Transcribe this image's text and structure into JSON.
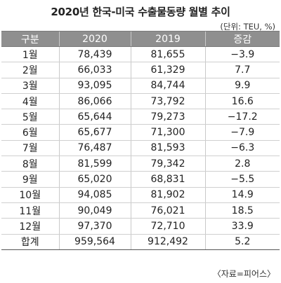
{
  "title": "2020년 한국-미국 수출물동량 월별 추이",
  "unit": "(단위: TEU, %)",
  "table": {
    "headers": [
      "구분",
      "2020",
      "2019",
      "증감"
    ],
    "rows": [
      [
        "1월",
        "78,439",
        "81,655",
        "−3.9"
      ],
      [
        "2월",
        "66,033",
        "61,329",
        "7.7"
      ],
      [
        "3월",
        "93,095",
        "84,744",
        "9.9"
      ],
      [
        "4월",
        "86,066",
        "73,792",
        "16.6"
      ],
      [
        "5월",
        "65,644",
        "79,273",
        "−17.2"
      ],
      [
        "6월",
        "65,677",
        "71,300",
        "−7.9"
      ],
      [
        "7월",
        "76,487",
        "81,593",
        "−6.3"
      ],
      [
        "8월",
        "81,599",
        "79,342",
        "2.8"
      ],
      [
        "9월",
        "65,020",
        "68,831",
        "−5.5"
      ],
      [
        "10월",
        "94,085",
        "81,902",
        "14.9"
      ],
      [
        "11월",
        "90,049",
        "76,021",
        "18.5"
      ],
      [
        "12월",
        "97,370",
        "72,710",
        "33.9"
      ],
      [
        "합계",
        "959,564",
        "912,492",
        "5.2"
      ]
    ]
  },
  "source": "〈자료=피어스〉"
}
